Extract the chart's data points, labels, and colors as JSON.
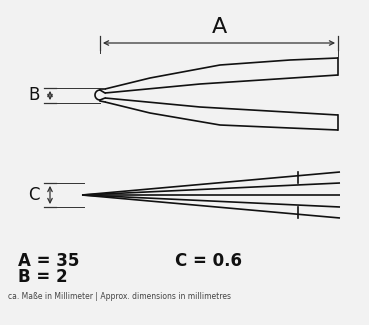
{
  "bg_color": "#f2f2f2",
  "line_color": "#111111",
  "dim_color": "#333333",
  "title_A": "A",
  "label_B": "B",
  "label_C": "C",
  "dim_A": "A = 35",
  "dim_B": "B = 2",
  "dim_C": "C = 0.6",
  "footer": "ca. Maße in Millimeter | Approx. dimensions in millimetres",
  "figsize": [
    3.69,
    3.25
  ],
  "dpi": 100
}
